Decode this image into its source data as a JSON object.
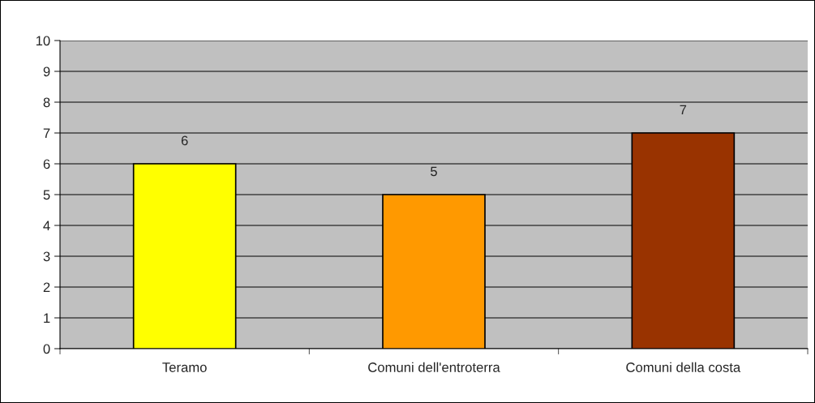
{
  "chart_data": {
    "type": "bar",
    "categories": [
      "Teramo",
      "Comuni dell'entroterra",
      "Comuni della costa"
    ],
    "values": [
      6,
      5,
      7
    ],
    "colors": [
      "#ffff00",
      "#ff9900",
      "#993300"
    ],
    "ylim": [
      0,
      10
    ],
    "yticks": [
      0,
      1,
      2,
      3,
      4,
      5,
      6,
      7,
      8,
      9,
      10
    ],
    "grid": "y",
    "data_labels": true,
    "legend": false
  }
}
